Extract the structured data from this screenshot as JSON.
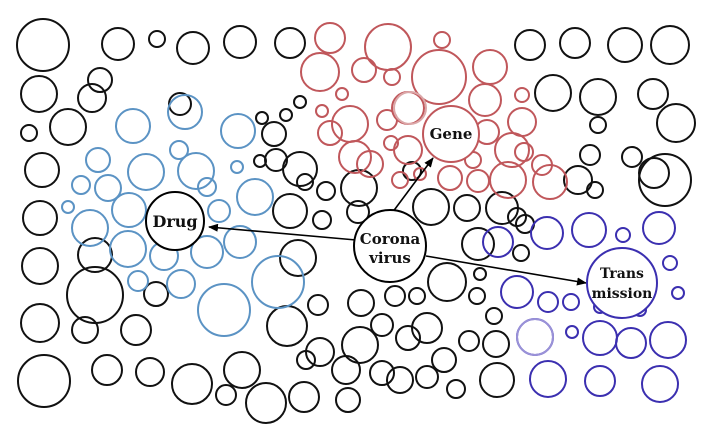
{
  "labels": {
    "drug": "Drug",
    "corona_line1": "Corona",
    "corona_line2": "virus",
    "gene": "Gene",
    "trans_line1": "Trans",
    "trans_line2": "mission"
  },
  "colors": {
    "background": "#ffffff",
    "neutral": "#111111",
    "drug_cluster": "#5b93c4",
    "gene_cluster": "#c0575b",
    "gene_faded": "#dba7a8",
    "transmission_cluster": "#3b2fb0",
    "transmission_faded": "#9a92d8",
    "arrow": "#000000"
  },
  "clusters": [
    "neutral",
    "drug",
    "gene",
    "transmission"
  ]
}
